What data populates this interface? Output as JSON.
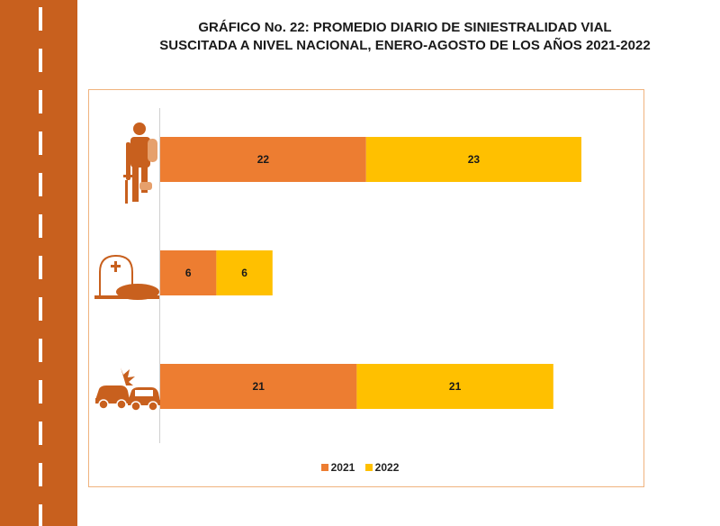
{
  "title_line1": "GRÁFICO No. 22: PROMEDIO DIARIO DE SINIESTRALIDAD VIAL",
  "title_line2": "SUSCITADA A NIVEL NACIONAL, ENERO-AGOSTO DE LOS AÑOS 2021-2022",
  "colors": {
    "s2021": "#ed7d31",
    "s2022": "#ffc000",
    "road": "#c8601e",
    "frame": "#f0b37e"
  },
  "icons": [
    "injured-person-icon",
    "grave-icon",
    "car-crash-icon"
  ],
  "chart_data": {
    "type": "bar",
    "orientation": "horizontal-stacked",
    "categories": [
      "Lesionados",
      "Fallecidos",
      "Siniestros"
    ],
    "series": [
      {
        "name": "2021",
        "values": [
          22,
          6,
          21
        ]
      },
      {
        "name": "2022",
        "values": [
          23,
          6,
          21
        ]
      }
    ],
    "legend_position": "bottom",
    "grid": false
  }
}
